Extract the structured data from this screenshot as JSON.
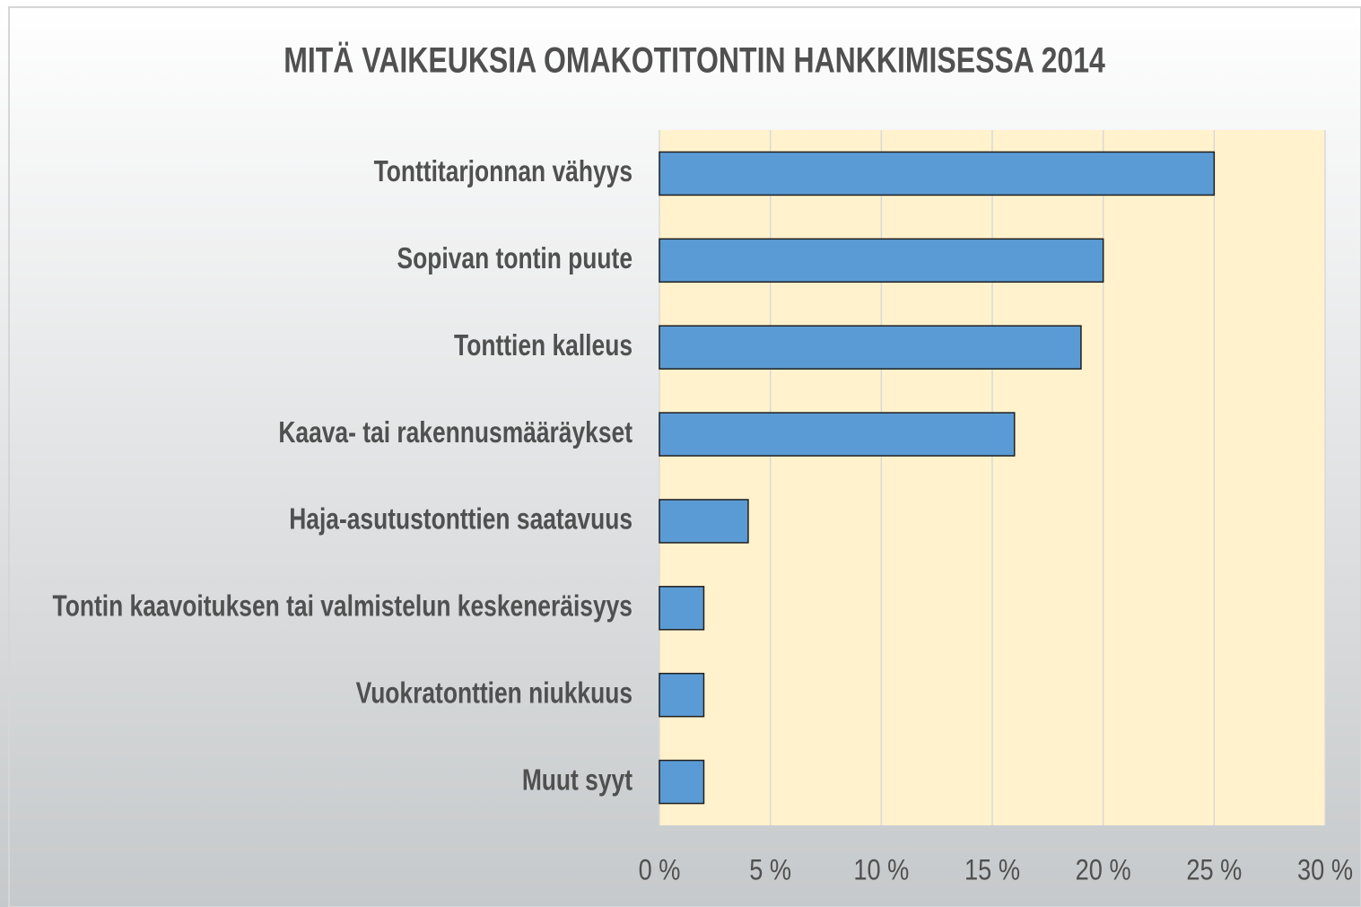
{
  "chart_data": {
    "type": "bar",
    "orientation": "horizontal",
    "title": "MITÄ VAIKEUKSIA OMAKOTITONTIN HANKKIMISESSA 2014",
    "categories": [
      "Tonttitarjonnan vähyys",
      "Sopivan tontin puute",
      "Tonttien kalleus",
      "Kaava- tai rakennusmääräykset",
      "Haja-asutustonttien saatavuus",
      "Tontin kaavoituksen tai valmistelun keskeneräisyys",
      "Vuokratonttien niukkuus",
      "Muut syyt"
    ],
    "values": [
      25,
      20,
      19,
      16,
      4,
      2,
      2,
      2
    ],
    "color": "#5b9bd5",
    "xlim": [
      0,
      30
    ],
    "xticks": [
      {
        "value": 0,
        "label": "0 %"
      },
      {
        "value": 5,
        "label": "5 %"
      },
      {
        "value": 10,
        "label": "10 %"
      },
      {
        "value": 15,
        "label": "15 %"
      },
      {
        "value": 20,
        "label": "20 %"
      },
      {
        "value": 25,
        "label": "25 %"
      },
      {
        "value": 30,
        "label": "30 %"
      }
    ],
    "grid": true
  }
}
